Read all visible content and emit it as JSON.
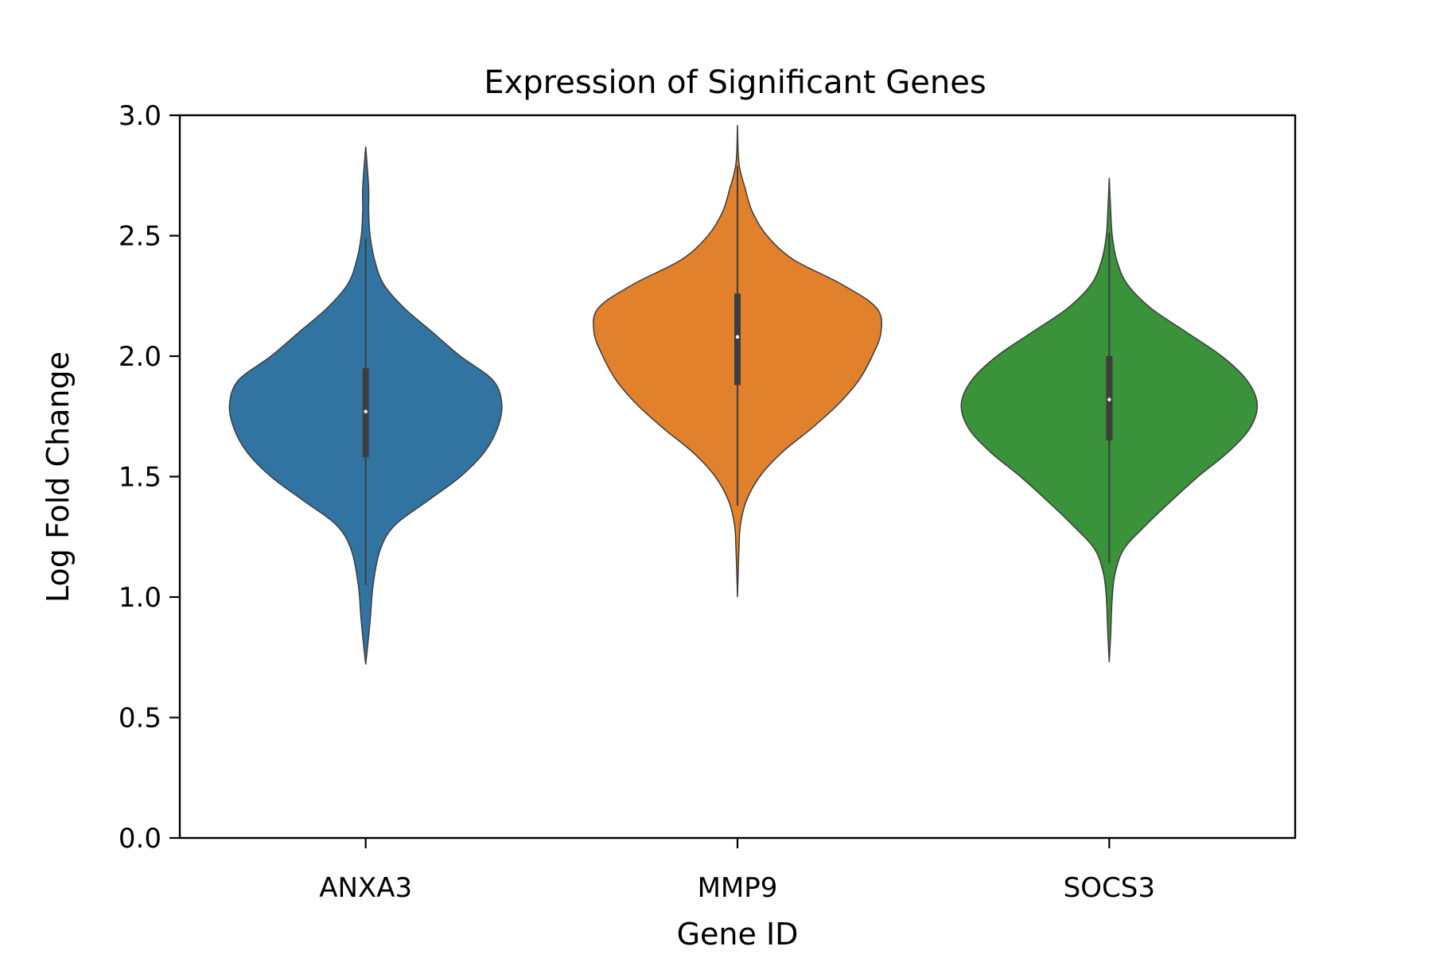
{
  "chart_data": {
    "type": "violin",
    "title": "Expression of Significant Genes",
    "xlabel": "Gene ID",
    "ylabel": "Log Fold Change",
    "ylim": [
      0.0,
      3.0
    ],
    "yticks": [
      "0.0",
      "0.5",
      "1.0",
      "1.5",
      "2.0",
      "2.5",
      "3.0"
    ],
    "categories": [
      "ANXA3",
      "MMP9",
      "SOCS3"
    ],
    "grid": false,
    "legend": "none",
    "series": [
      {
        "category": "ANXA3",
        "color": "#3274a1",
        "range": [
          0.72,
          2.87
        ],
        "whisker": [
          1.05,
          2.49
        ],
        "q1": 1.58,
        "median": 1.77,
        "q3": 1.95,
        "density": [
          [
            0.72,
            0.0
          ],
          [
            0.9,
            0.03
          ],
          [
            1.05,
            0.05
          ],
          [
            1.2,
            0.1
          ],
          [
            1.3,
            0.2
          ],
          [
            1.4,
            0.42
          ],
          [
            1.5,
            0.64
          ],
          [
            1.6,
            0.8
          ],
          [
            1.7,
            0.89
          ],
          [
            1.8,
            0.92
          ],
          [
            1.9,
            0.86
          ],
          [
            2.0,
            0.64
          ],
          [
            2.1,
            0.45
          ],
          [
            2.2,
            0.26
          ],
          [
            2.3,
            0.12
          ],
          [
            2.4,
            0.06
          ],
          [
            2.5,
            0.03
          ],
          [
            2.6,
            0.02
          ],
          [
            2.7,
            0.02
          ],
          [
            2.87,
            0.0
          ]
        ]
      },
      {
        "category": "MMP9",
        "color": "#e1812c",
        "range": [
          1.0,
          2.96
        ],
        "whisker": [
          1.38,
          2.79
        ],
        "q1": 1.88,
        "median": 2.08,
        "q3": 2.26,
        "density": [
          [
            1.0,
            0.0
          ],
          [
            1.2,
            0.01
          ],
          [
            1.3,
            0.02
          ],
          [
            1.4,
            0.06
          ],
          [
            1.5,
            0.15
          ],
          [
            1.6,
            0.3
          ],
          [
            1.7,
            0.5
          ],
          [
            1.8,
            0.68
          ],
          [
            1.9,
            0.82
          ],
          [
            2.0,
            0.91
          ],
          [
            2.1,
            0.97
          ],
          [
            2.2,
            0.94
          ],
          [
            2.3,
            0.7
          ],
          [
            2.4,
            0.38
          ],
          [
            2.5,
            0.2
          ],
          [
            2.6,
            0.1
          ],
          [
            2.7,
            0.05
          ],
          [
            2.8,
            0.01
          ],
          [
            2.96,
            0.0
          ]
        ]
      },
      {
        "category": "SOCS3",
        "color": "#3a923a",
        "range": [
          0.73,
          2.74
        ],
        "whisker": [
          1.14,
          2.51
        ],
        "q1": 1.65,
        "median": 1.82,
        "q3": 2.0,
        "density": [
          [
            0.73,
            0.0
          ],
          [
            0.85,
            0.01
          ],
          [
            1.0,
            0.02
          ],
          [
            1.1,
            0.04
          ],
          [
            1.2,
            0.1
          ],
          [
            1.3,
            0.25
          ],
          [
            1.4,
            0.42
          ],
          [
            1.5,
            0.6
          ],
          [
            1.6,
            0.8
          ],
          [
            1.7,
            0.95
          ],
          [
            1.8,
            1.0
          ],
          [
            1.9,
            0.93
          ],
          [
            2.0,
            0.76
          ],
          [
            2.1,
            0.52
          ],
          [
            2.2,
            0.28
          ],
          [
            2.3,
            0.12
          ],
          [
            2.4,
            0.05
          ],
          [
            2.5,
            0.02
          ],
          [
            2.6,
            0.01
          ],
          [
            2.74,
            0.0
          ]
        ]
      }
    ]
  }
}
